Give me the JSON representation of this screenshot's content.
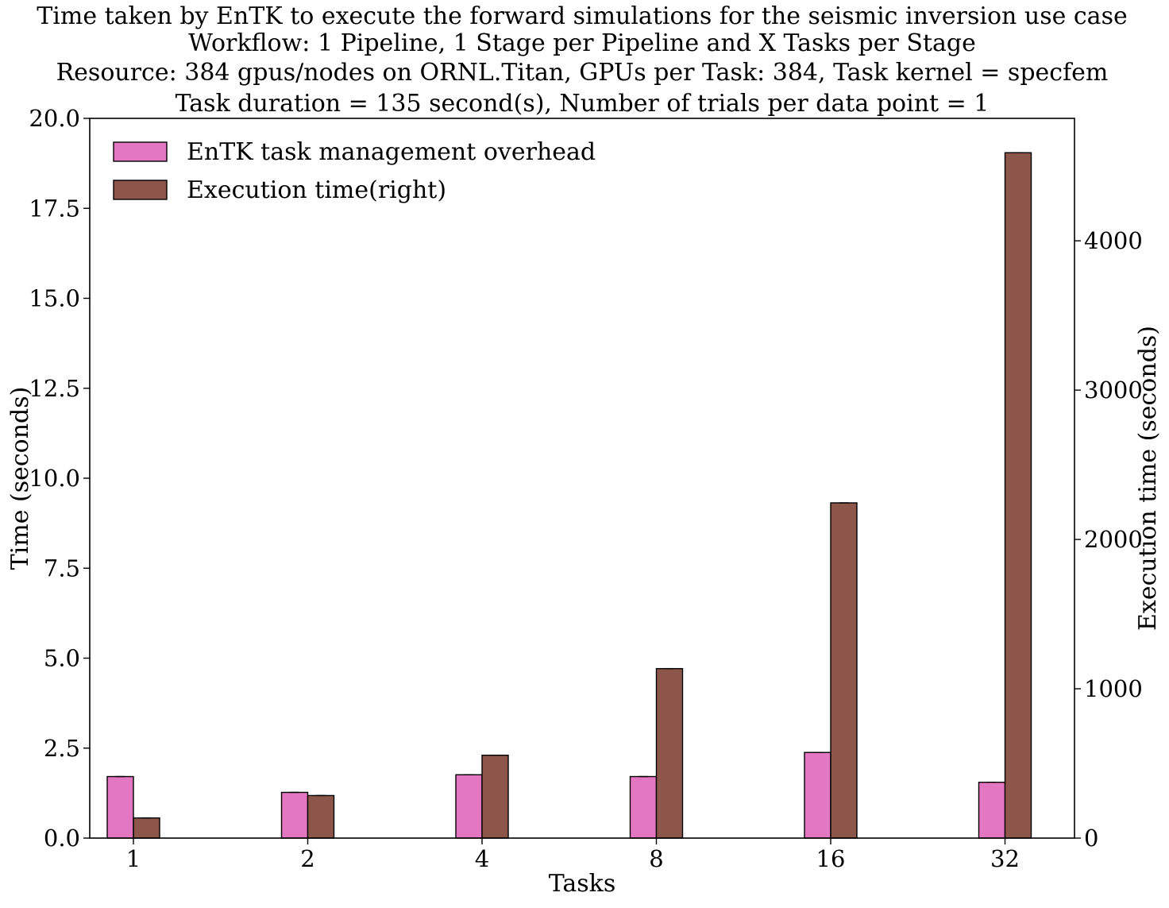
{
  "chart_data": {
    "type": "bar",
    "title_lines": [
      "Time taken by EnTK to execute the forward simulations for the seismic inversion use case",
      "Workflow: 1 Pipeline, 1 Stage per Pipeline and X Tasks per Stage",
      "Resource: 384 gpus/nodes on ORNL.Titan, GPUs per Task: 384, Task kernel = specfem",
      "Task duration =  135 second(s), Number of trials per data point = 1"
    ],
    "xlabel": "Tasks",
    "ylabel": "Time (seconds)",
    "ylabel_right": "Execution time (seconds)",
    "categories": [
      "1",
      "2",
      "4",
      "8",
      "16",
      "32"
    ],
    "ylim": [
      0,
      20
    ],
    "ylim_right": [
      0,
      4820
    ],
    "yticks": [
      0.0,
      2.5,
      5.0,
      7.5,
      10.0,
      12.5,
      15.0,
      17.5,
      20.0
    ],
    "yticks_right": [
      0,
      1000,
      2000,
      3000,
      4000
    ],
    "grid": false,
    "legend_position": "top-left",
    "series": [
      {
        "name": "EnTK task management overhead",
        "axis": "left",
        "color": "#e377c2",
        "values": [
          1.71,
          1.27,
          1.76,
          1.71,
          2.38,
          1.55
        ]
      },
      {
        "name": "Execution time(right)",
        "axis": "right",
        "color": "#8c564b",
        "values": [
          135,
          285,
          555,
          1135,
          2245,
          4590
        ]
      }
    ]
  }
}
